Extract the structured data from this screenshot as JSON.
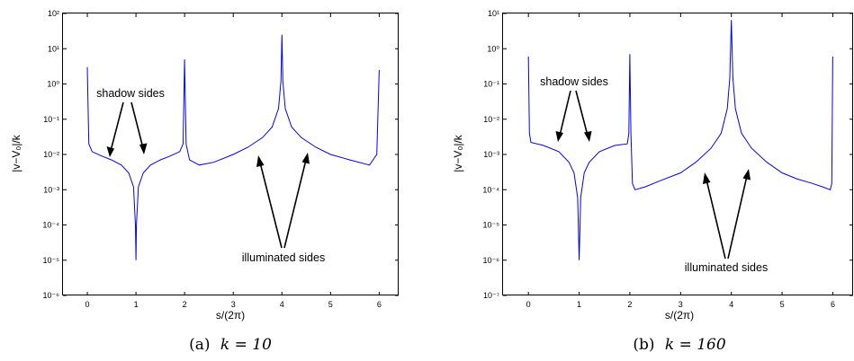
{
  "chart_data": [
    {
      "type": "line",
      "caption": "(a) k = 10",
      "caption_label": "(a)",
      "caption_eq": "k = 10",
      "xlabel": "s/(2π)",
      "ylabel": "|v−V₀|/k",
      "xlim": [
        -0.5,
        6.4
      ],
      "ylim_log10": [
        -6,
        2
      ],
      "y_scale": "log",
      "xticks": [
        "0",
        "1",
        "2",
        "3",
        "4",
        "5",
        "6"
      ],
      "yticks": [
        "10⁻⁶",
        "10⁻⁵",
        "10⁻⁴",
        "10⁻³",
        "10⁻²",
        "10⁻¹",
        "10⁰",
        "10¹",
        "10²"
      ],
      "grid": false,
      "line_color": "#0000ff",
      "series": [
        {
          "x": [
            0,
            0.03,
            0.1,
            0.3,
            0.5,
            0.7,
            0.85,
            0.95,
            0.99,
            1.0,
            1.01,
            1.05,
            1.15,
            1.3,
            1.5,
            1.7,
            1.9,
            1.97,
            2.0,
            2.03,
            2.1,
            2.3,
            2.6,
            3.0,
            3.3,
            3.6,
            3.8,
            3.93,
            3.98,
            4.0,
            4.02,
            4.07,
            4.2,
            4.4,
            4.7,
            5.0,
            5.4,
            5.8,
            5.95,
            6.0
          ],
          "y": [
            3,
            0.02,
            0.012,
            0.009,
            0.007,
            0.005,
            0.003,
            0.0012,
            0.0001,
            1e-05,
            0.0001,
            0.0012,
            0.003,
            0.005,
            0.007,
            0.009,
            0.012,
            0.02,
            5,
            0.02,
            0.007,
            0.005,
            0.006,
            0.01,
            0.016,
            0.03,
            0.06,
            0.2,
            1.2,
            25,
            1.2,
            0.2,
            0.06,
            0.03,
            0.016,
            0.01,
            0.007,
            0.005,
            0.01,
            2.5
          ]
        }
      ],
      "annotations": [
        {
          "text": "shadow sides",
          "points_to": [
            [
              0.6,
              0.01
            ],
            [
              1.3,
              0.01
            ]
          ]
        },
        {
          "text": "illuminated sides",
          "points_to": [
            [
              3.5,
              0.014
            ],
            [
              4.5,
              0.016
            ]
          ]
        }
      ]
    },
    {
      "type": "line",
      "caption": "(b) k = 160",
      "caption_label": "(b)",
      "caption_eq": "k = 160",
      "xlabel": "s/(2π)",
      "ylabel": "|v−V₀|/k",
      "xlim": [
        -0.5,
        6.4
      ],
      "ylim_log10": [
        -7,
        1
      ],
      "y_scale": "log",
      "xticks": [
        "0",
        "1",
        "2",
        "3",
        "4",
        "5",
        "6"
      ],
      "yticks": [
        "10⁻⁷",
        "10⁻⁶",
        "10⁻⁵",
        "10⁻⁴",
        "10⁻³",
        "10⁻²",
        "10⁻¹",
        "10⁰",
        "10¹"
      ],
      "grid": false,
      "line_color": "#0000ff",
      "series": [
        {
          "x": [
            0,
            0.02,
            0.05,
            0.3,
            0.6,
            0.8,
            0.9,
            0.97,
            1.0,
            1.03,
            1.1,
            1.2,
            1.4,
            1.7,
            1.95,
            1.98,
            2.0,
            2.02,
            2.05,
            2.1,
            2.3,
            2.6,
            3.0,
            3.3,
            3.6,
            3.8,
            3.92,
            3.97,
            4.0,
            4.03,
            4.08,
            4.2,
            4.4,
            4.7,
            5.0,
            5.3,
            5.6,
            5.8,
            5.95,
            5.98,
            6.0
          ],
          "y": [
            0.6,
            0.004,
            0.0022,
            0.0018,
            0.0012,
            0.0006,
            0.0003,
            6e-05,
            1e-06,
            6e-05,
            0.0003,
            0.0006,
            0.0012,
            0.0018,
            0.002,
            0.004,
            0.7,
            0.004,
            0.00015,
            0.0001,
            0.00012,
            0.00018,
            0.0003,
            0.0006,
            0.0015,
            0.004,
            0.02,
            0.15,
            6.5,
            0.15,
            0.02,
            0.004,
            0.0015,
            0.0006,
            0.0003,
            0.0002,
            0.00015,
            0.00012,
            0.0001,
            0.00015,
            0.6
          ]
        }
      ],
      "annotations": [
        {
          "text": "shadow sides",
          "points_to": [
            [
              0.75,
              0.0017
            ],
            [
              1.25,
              0.0017
            ]
          ]
        },
        {
          "text": "illuminated sides",
          "points_to": [
            [
              3.45,
              0.0005
            ],
            [
              4.45,
              0.0005
            ]
          ]
        }
      ]
    }
  ]
}
